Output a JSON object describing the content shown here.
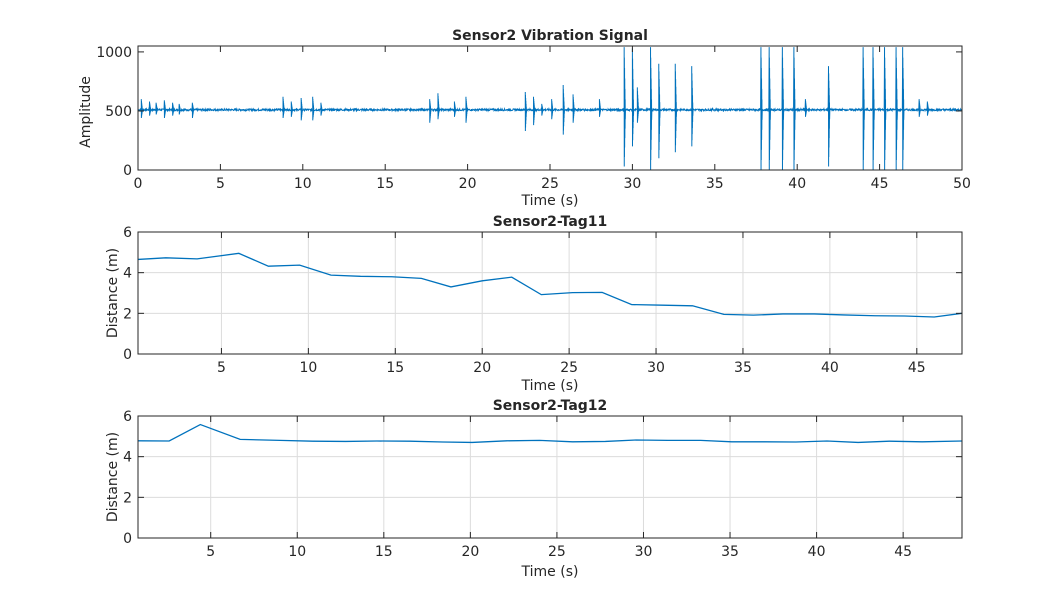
{
  "chart_data": [
    {
      "type": "line",
      "title": "Sensor2 Vibration Signal",
      "xlabel": "Time (s)",
      "ylabel": "Amplitude",
      "xlim": [
        0,
        50
      ],
      "ylim": [
        0,
        1050
      ],
      "xticks": [
        0,
        5,
        10,
        15,
        20,
        25,
        30,
        35,
        40,
        45,
        50
      ],
      "yticks": [
        0,
        500,
        1000
      ],
      "grid": false,
      "color": "#0072BD",
      "baseline": 510,
      "noise": 8,
      "bursts": [
        {
          "t": 0.2,
          "hi": 600,
          "lo": 440
        },
        {
          "t": 0.7,
          "hi": 580,
          "lo": 460
        },
        {
          "t": 1.1,
          "hi": 570,
          "lo": 470
        },
        {
          "t": 1.6,
          "hi": 590,
          "lo": 440
        },
        {
          "t": 2.1,
          "hi": 570,
          "lo": 460
        },
        {
          "t": 2.5,
          "hi": 560,
          "lo": 470
        },
        {
          "t": 3.3,
          "hi": 570,
          "lo": 440
        },
        {
          "t": 8.8,
          "hi": 620,
          "lo": 440
        },
        {
          "t": 9.3,
          "hi": 580,
          "lo": 450
        },
        {
          "t": 9.9,
          "hi": 610,
          "lo": 420
        },
        {
          "t": 10.6,
          "hi": 620,
          "lo": 420
        },
        {
          "t": 11.1,
          "hi": 570,
          "lo": 460
        },
        {
          "t": 17.7,
          "hi": 600,
          "lo": 400
        },
        {
          "t": 18.2,
          "hi": 650,
          "lo": 430
        },
        {
          "t": 19.2,
          "hi": 580,
          "lo": 450
        },
        {
          "t": 19.9,
          "hi": 620,
          "lo": 400
        },
        {
          "t": 23.5,
          "hi": 660,
          "lo": 330
        },
        {
          "t": 24.0,
          "hi": 620,
          "lo": 380
        },
        {
          "t": 24.5,
          "hi": 560,
          "lo": 460
        },
        {
          "t": 25.1,
          "hi": 600,
          "lo": 430
        },
        {
          "t": 25.8,
          "hi": 720,
          "lo": 300
        },
        {
          "t": 26.4,
          "hi": 640,
          "lo": 400
        },
        {
          "t": 28.0,
          "hi": 600,
          "lo": 450
        },
        {
          "t": 29.5,
          "hi": 1040,
          "lo": 30
        },
        {
          "t": 30.0,
          "hi": 1030,
          "lo": 200
        },
        {
          "t": 30.3,
          "hi": 700,
          "lo": 400
        },
        {
          "t": 31.1,
          "hi": 1040,
          "lo": 0
        },
        {
          "t": 31.6,
          "hi": 900,
          "lo": 100
        },
        {
          "t": 32.6,
          "hi": 900,
          "lo": 150
        },
        {
          "t": 33.6,
          "hi": 880,
          "lo": 200
        },
        {
          "t": 37.8,
          "hi": 1040,
          "lo": 0
        },
        {
          "t": 38.3,
          "hi": 1040,
          "lo": 0
        },
        {
          "t": 39.1,
          "hi": 1040,
          "lo": 0
        },
        {
          "t": 39.8,
          "hi": 1040,
          "lo": 0
        },
        {
          "t": 40.5,
          "hi": 600,
          "lo": 450
        },
        {
          "t": 41.9,
          "hi": 880,
          "lo": 30
        },
        {
          "t": 44.0,
          "hi": 1040,
          "lo": 0
        },
        {
          "t": 44.6,
          "hi": 1040,
          "lo": 0
        },
        {
          "t": 45.3,
          "hi": 1040,
          "lo": 0
        },
        {
          "t": 46.0,
          "hi": 1040,
          "lo": 0
        },
        {
          "t": 46.4,
          "hi": 1040,
          "lo": 0
        },
        {
          "t": 47.4,
          "hi": 600,
          "lo": 450
        },
        {
          "t": 47.9,
          "hi": 580,
          "lo": 460
        }
      ]
    },
    {
      "type": "line",
      "title": "Sensor2-Tag11",
      "xlabel": "Time (s)",
      "ylabel": "Distance (m)",
      "xlim": [
        0.2,
        47.6
      ],
      "ylim": [
        0,
        6
      ],
      "xticks": [
        5,
        10,
        15,
        20,
        25,
        30,
        35,
        40,
        45
      ],
      "yticks": [
        0,
        2,
        4,
        6
      ],
      "grid": true,
      "color": "#0072BD",
      "x": [
        0.2,
        1.8,
        3.6,
        6.0,
        7.7,
        9.5,
        11.3,
        13.0,
        14.8,
        16.5,
        18.2,
        20.0,
        21.7,
        23.4,
        25.2,
        26.9,
        28.6,
        30.4,
        32.1,
        33.9,
        35.6,
        37.3,
        39.1,
        40.8,
        42.6,
        44.3,
        46.0,
        47.6
      ],
      "y": [
        4.65,
        4.73,
        4.68,
        4.95,
        4.32,
        4.37,
        3.88,
        3.82,
        3.8,
        3.72,
        3.3,
        3.6,
        3.78,
        2.92,
        3.02,
        3.03,
        2.43,
        2.4,
        2.37,
        1.95,
        1.91,
        1.97,
        1.97,
        1.92,
        1.88,
        1.87,
        1.82,
        2.0
      ]
    },
    {
      "type": "line",
      "title": "Sensor2-Tag12",
      "xlabel": "Time (s)",
      "ylabel": "Distance (m)",
      "xlim": [
        0.8,
        48.4
      ],
      "ylim": [
        0,
        6
      ],
      "xticks": [
        5,
        10,
        15,
        20,
        25,
        30,
        35,
        40,
        45
      ],
      "yticks": [
        0,
        2,
        4,
        6
      ],
      "grid": true,
      "color": "#0072BD",
      "x": [
        0.8,
        2.6,
        4.4,
        6.7,
        9.0,
        10.9,
        12.8,
        14.6,
        16.5,
        18.4,
        20.1,
        22.1,
        24.0,
        25.9,
        27.8,
        29.6,
        31.4,
        33.3,
        35.1,
        37.0,
        38.8,
        40.6,
        42.4,
        44.2,
        46.1,
        48.4
      ],
      "y": [
        4.78,
        4.77,
        5.58,
        4.85,
        4.8,
        4.76,
        4.75,
        4.77,
        4.76,
        4.72,
        4.7,
        4.78,
        4.8,
        4.73,
        4.75,
        4.82,
        4.8,
        4.8,
        4.73,
        4.73,
        4.72,
        4.77,
        4.7,
        4.76,
        4.73,
        4.77
      ]
    }
  ]
}
